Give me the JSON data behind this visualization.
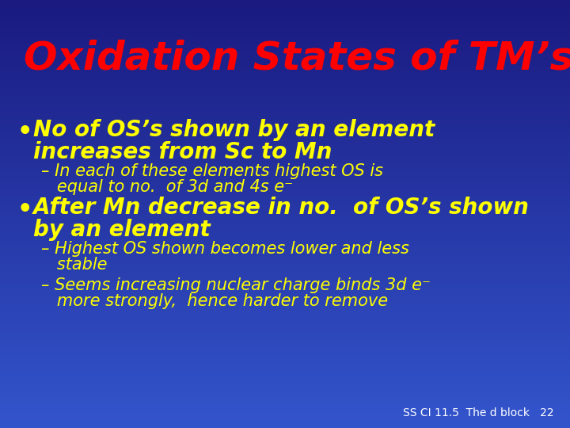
{
  "title": "Oxidation States of TM’s",
  "title_color": "#FF0000",
  "title_fontsize": 36,
  "bg_top": "#1a1a80",
  "bg_bottom": "#3355cc",
  "bullet1_main_line1": "No of OS’s shown by an element",
  "bullet1_main_line2": "increases from Sc to Mn",
  "bullet1_sub_line1": "– In each of these elements highest OS is",
  "bullet1_sub_line2": "   equal to no.  of 3d and 4s e⁻",
  "bullet2_main_line1": "After Mn decrease in no.  of OS’s shown",
  "bullet2_main_line2": "by an element",
  "bullet2_sub1_line1": "– Highest OS shown becomes lower and less",
  "bullet2_sub1_line2": "   stable",
  "bullet2_sub2_line1": "– Seems increasing nuclear charge binds 3d e⁻",
  "bullet2_sub2_line2": "   more strongly,  hence harder to remove",
  "bullet_color": "#FFFF00",
  "bullet_main_fontsize": 20,
  "bullet_sub_fontsize": 15,
  "footer": "SS CI 11.5  The d block   22",
  "footer_color": "#FFFFFF",
  "footer_fontsize": 10,
  "bullet_dot": "•"
}
